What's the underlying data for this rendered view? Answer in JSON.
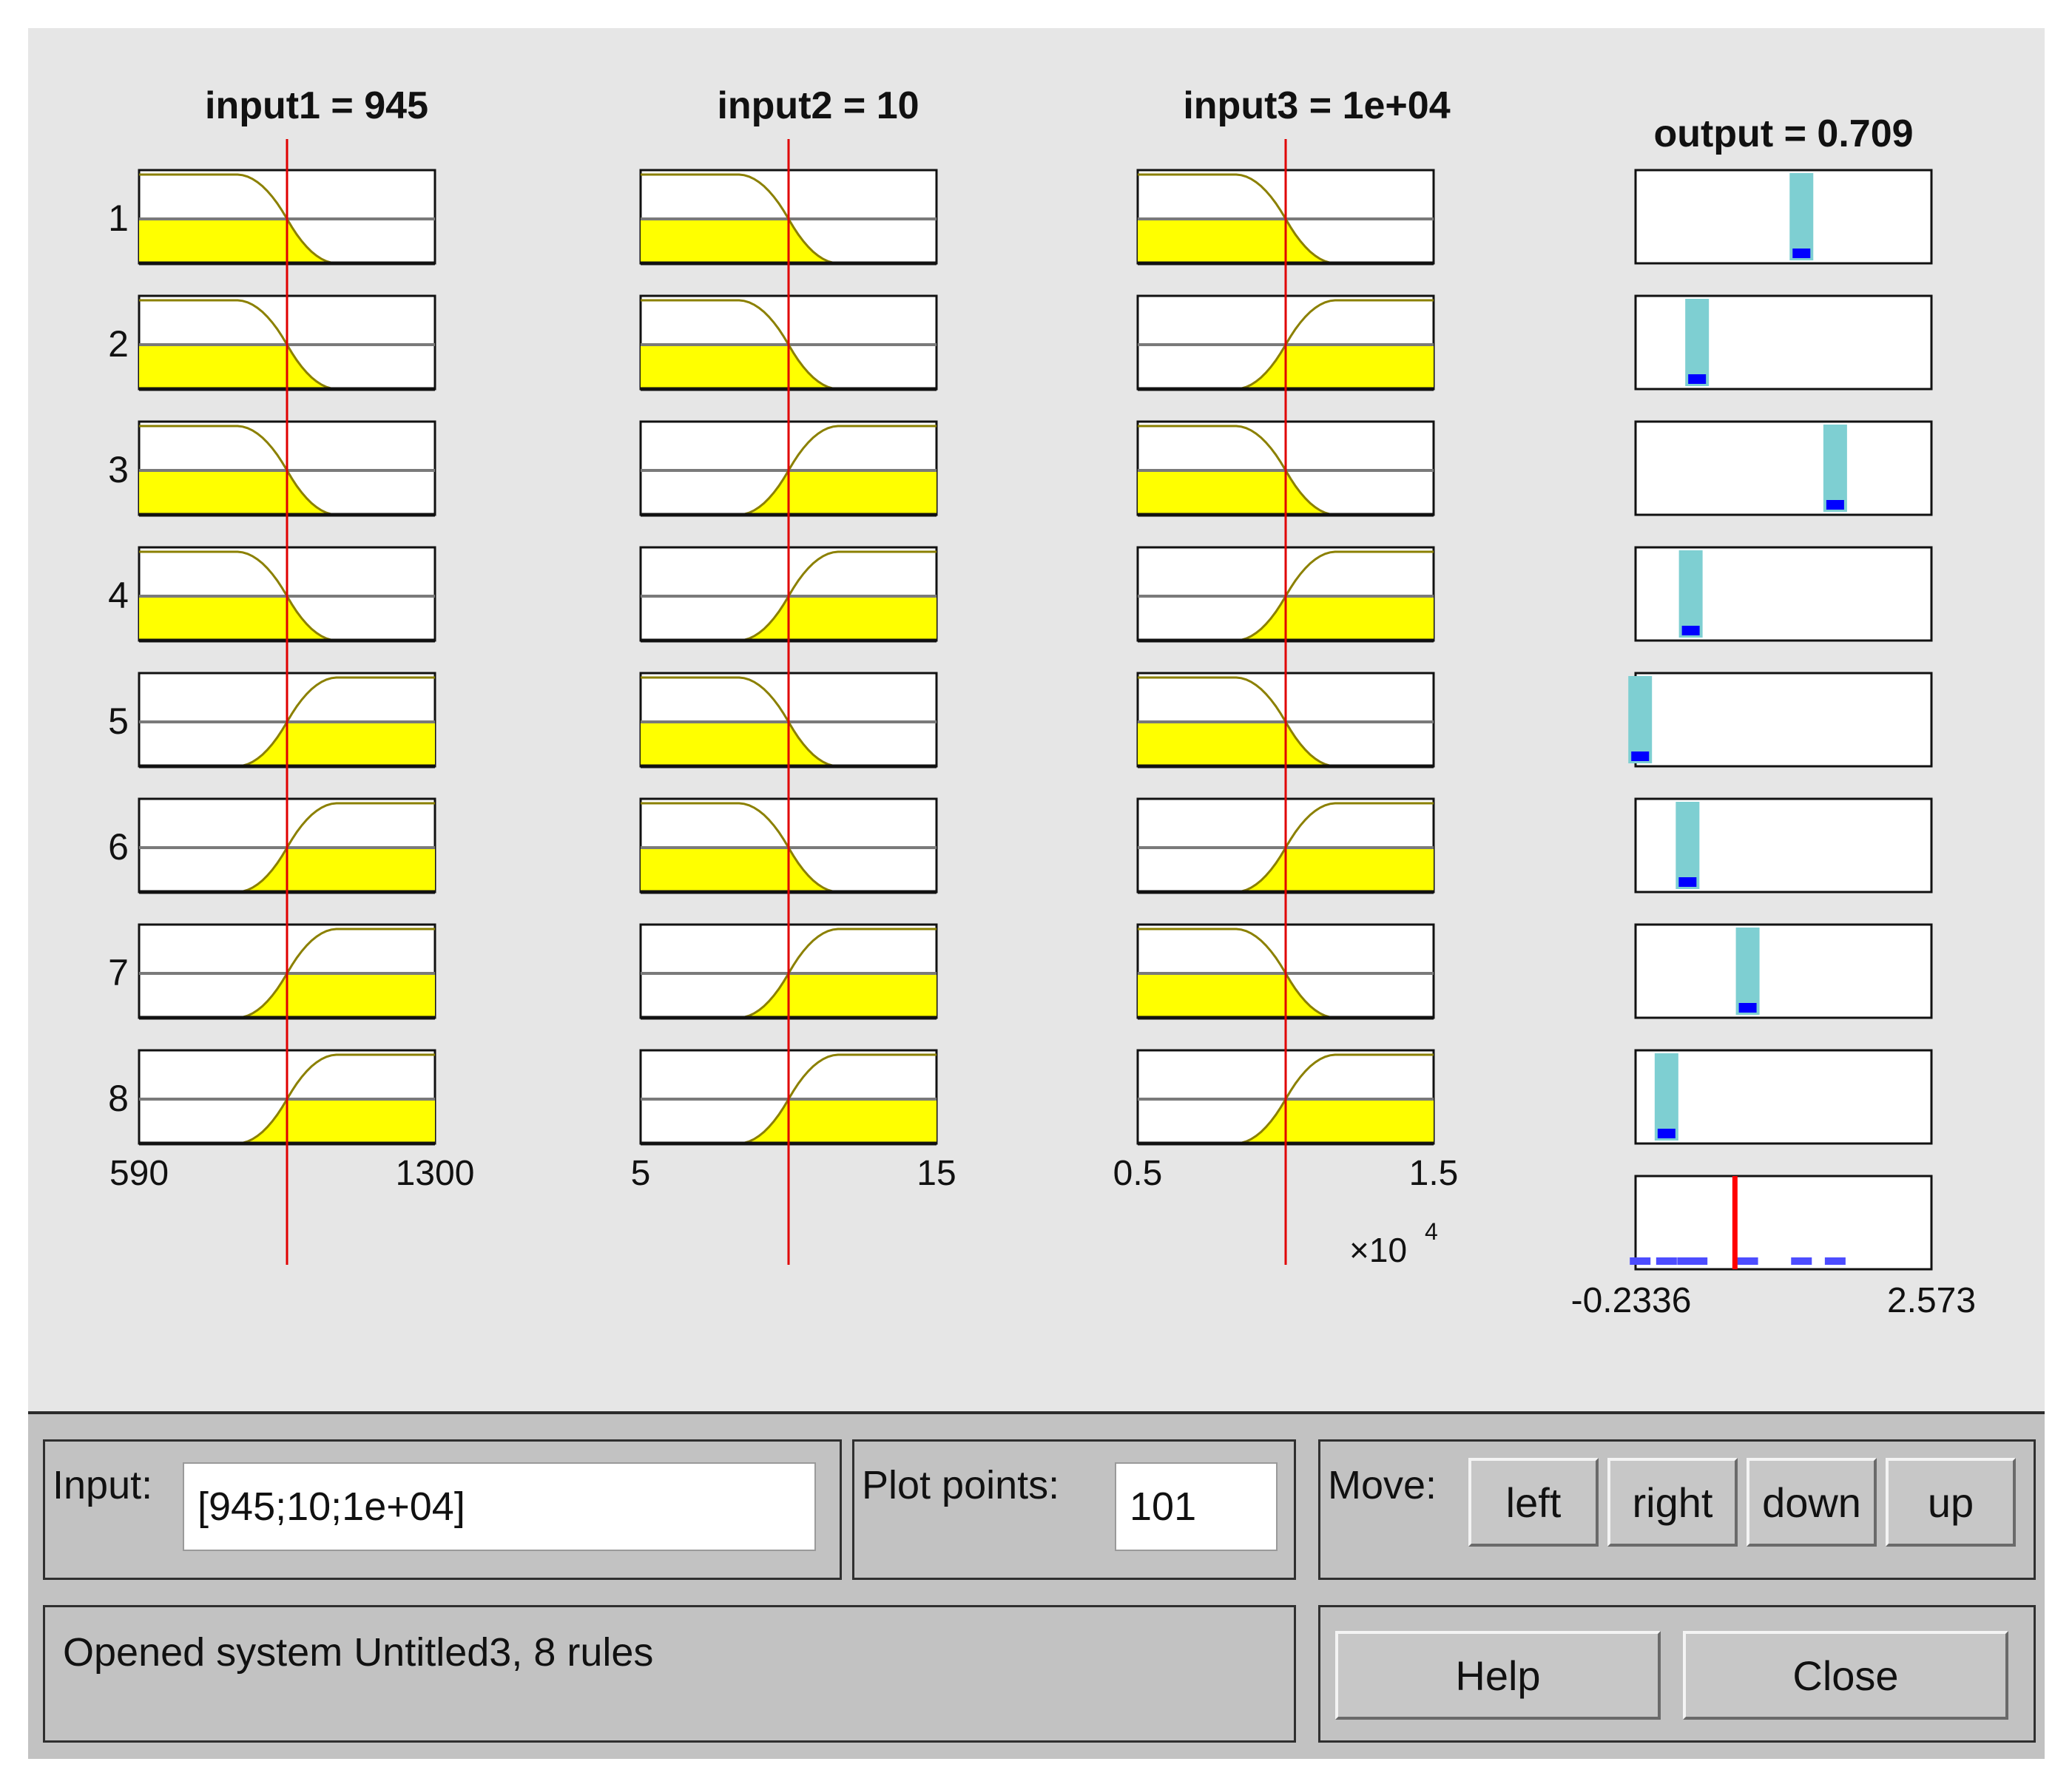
{
  "headers": {
    "input1": "input1 = 945",
    "input2": "input2 = 10",
    "input3": "input3 = 1e+04",
    "output": "output = 0.709"
  },
  "rule_numbers": [
    "1",
    "2",
    "3",
    "4",
    "5",
    "6",
    "7",
    "8"
  ],
  "inputs": [
    {
      "range": [
        590,
        1300
      ],
      "value": 945,
      "tick_min": "590",
      "tick_max": "1300",
      "exponent_label": ""
    },
    {
      "range": [
        5,
        15
      ],
      "value": 10,
      "tick_min": "5",
      "tick_max": "15",
      "exponent_label": ""
    },
    {
      "range": [
        0.5,
        1.5
      ],
      "value": 1.0,
      "tick_min": "0.5",
      "tick_max": "1.5",
      "exponent_label": "×10",
      "exponent_power": "4"
    }
  ],
  "rule_mfs": [
    [
      "low",
      "low",
      "low"
    ],
    [
      "low",
      "low",
      "high"
    ],
    [
      "low",
      "high",
      "low"
    ],
    [
      "low",
      "high",
      "high"
    ],
    [
      "high",
      "low",
      "low"
    ],
    [
      "high",
      "low",
      "high"
    ],
    [
      "high",
      "high",
      "low"
    ],
    [
      "high",
      "high",
      "high"
    ]
  ],
  "output": {
    "range": [
      -0.2336,
      2.573
    ],
    "tick_min": "-0.2336",
    "tick_max": "2.573",
    "value": 0.709,
    "rule_outputs": [
      1.34,
      0.35,
      1.66,
      0.29,
      -0.19,
      0.26,
      0.83,
      0.06
    ]
  },
  "colors": {
    "fill": "#ffff00",
    "mf_line": "#8b8000",
    "value_line": "#e00000",
    "output_bar": "#7ecfd2",
    "output_cap": "#0000ff",
    "aggregate": "#4d4dff",
    "panel_bg": "#e6e6e6",
    "controls_bg": "#c2c2c2"
  },
  "controls": {
    "input_label": "Input:",
    "input_value": "[945;10;1e+04]",
    "plot_points_label": "Plot points:",
    "plot_points_value": "101",
    "move_label": "Move:",
    "buttons": {
      "left": "left",
      "right": "right",
      "down": "down",
      "up": "up"
    },
    "help": "Help",
    "close": "Close",
    "status": "Opened system Untitled3, 8 rules"
  }
}
